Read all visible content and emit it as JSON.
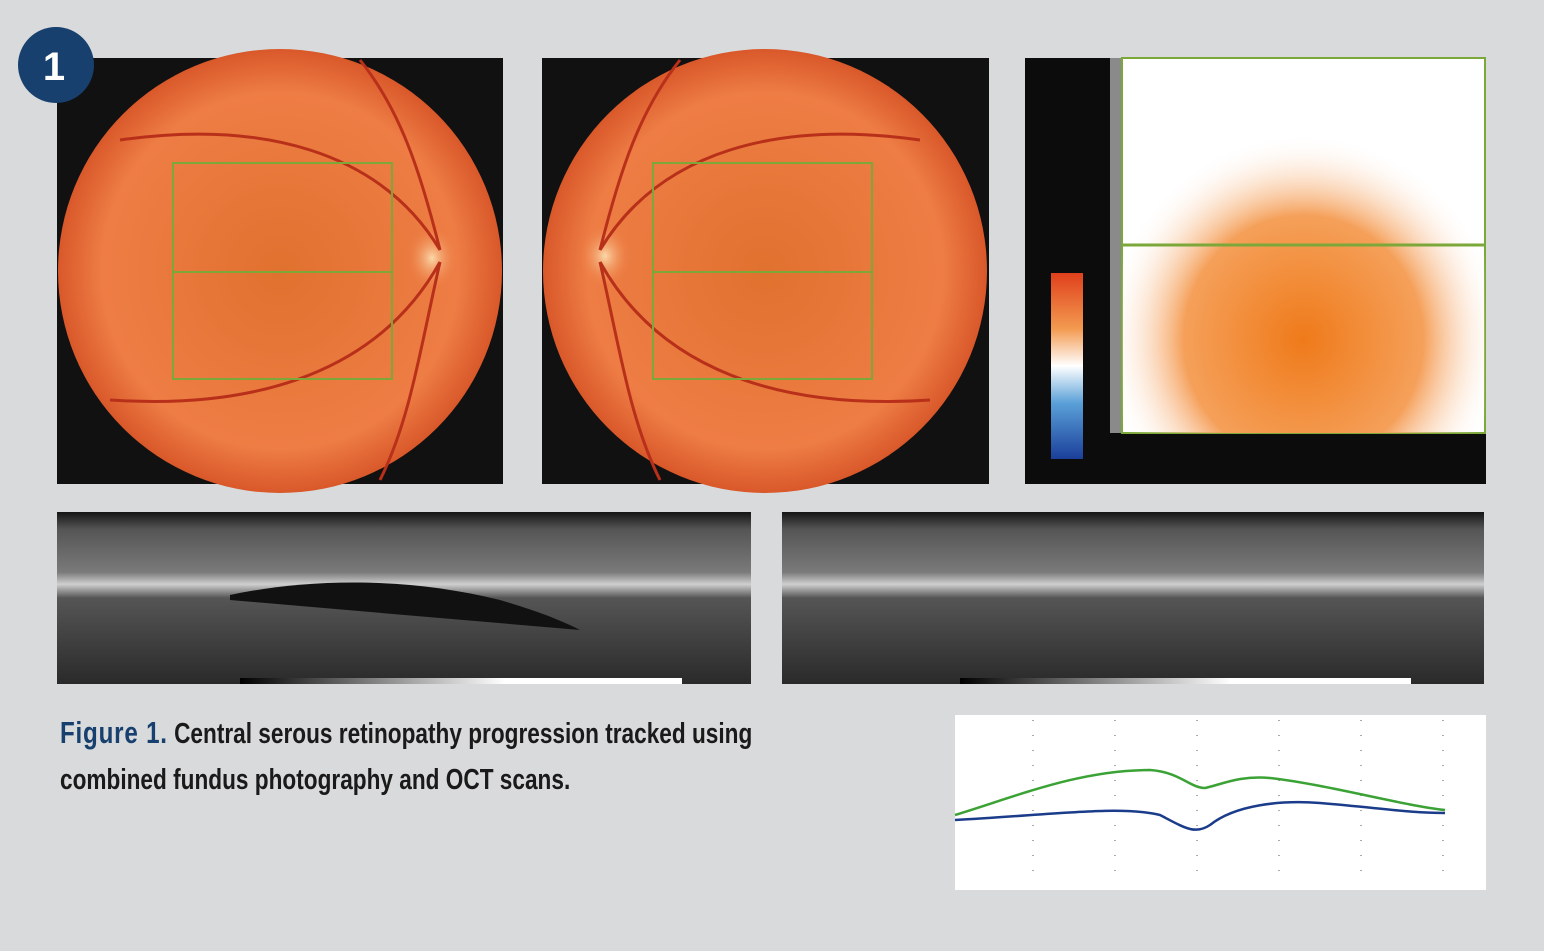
{
  "badge": "1",
  "figure": {
    "label": "Figure 1.",
    "caption": "Central serous retinopathy progression tracked using combined fundus photography and OCT scans."
  }
}
